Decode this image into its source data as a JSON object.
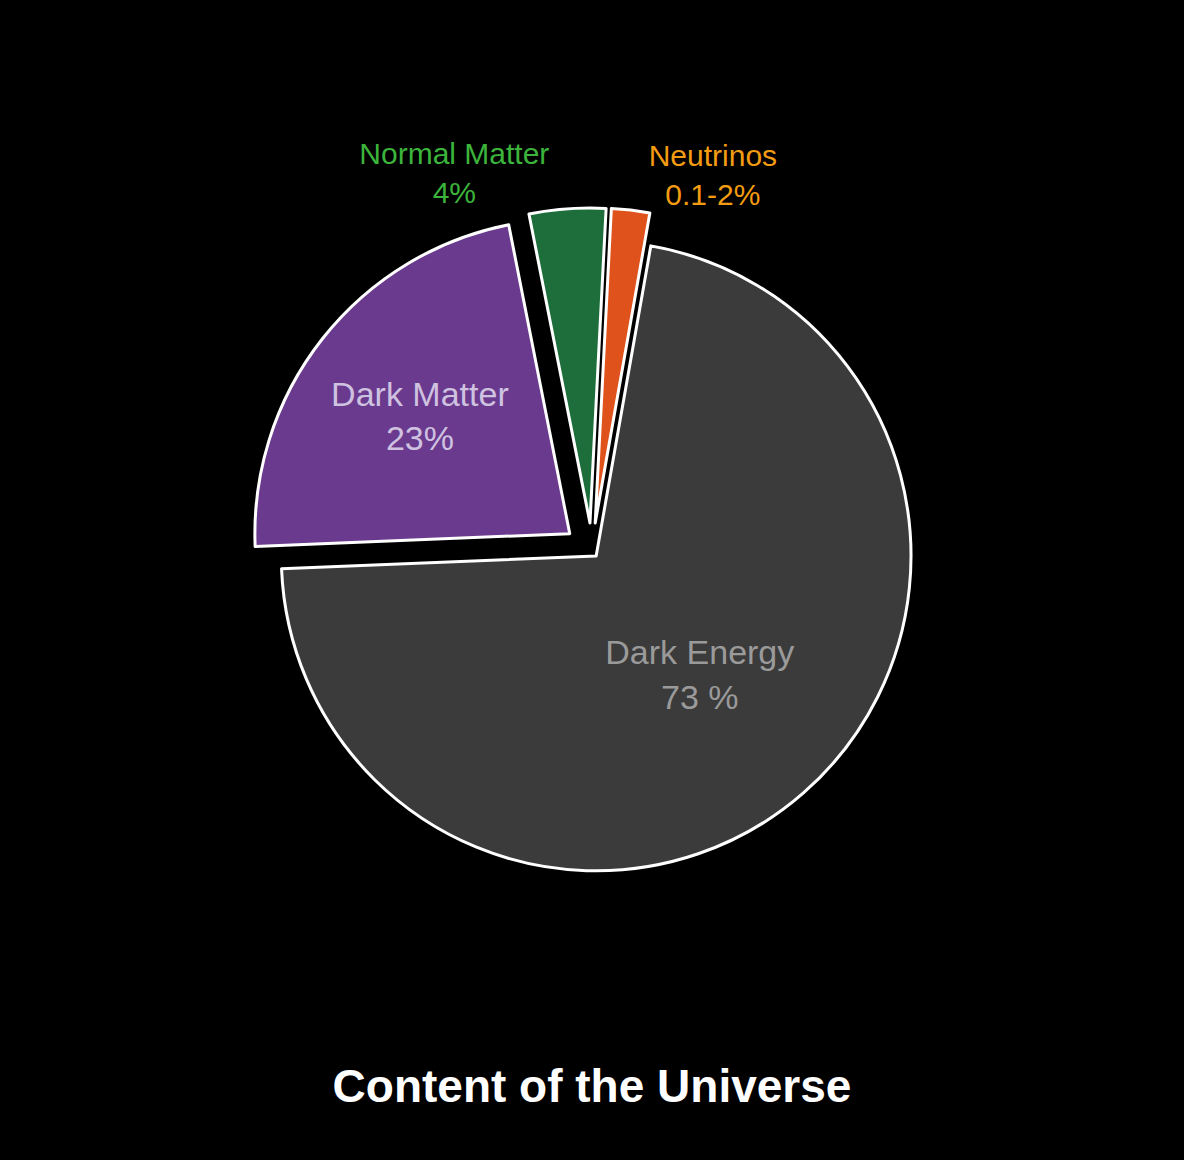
{
  "chart_data": {
    "type": "pie",
    "title": "Content of the Universe",
    "categories": [
      "Dark Energy",
      "Dark Matter",
      "Normal Matter",
      "Neutrinos"
    ],
    "values": [
      73,
      23,
      4,
      2
    ],
    "value_labels": [
      "73 %",
      "23%",
      "4%",
      "0.1-2%"
    ],
    "colors": [
      "#3b3b3b",
      "#6a3a8e",
      "#1e6e3c",
      "#e0521c"
    ],
    "data_labels": true
  }
}
